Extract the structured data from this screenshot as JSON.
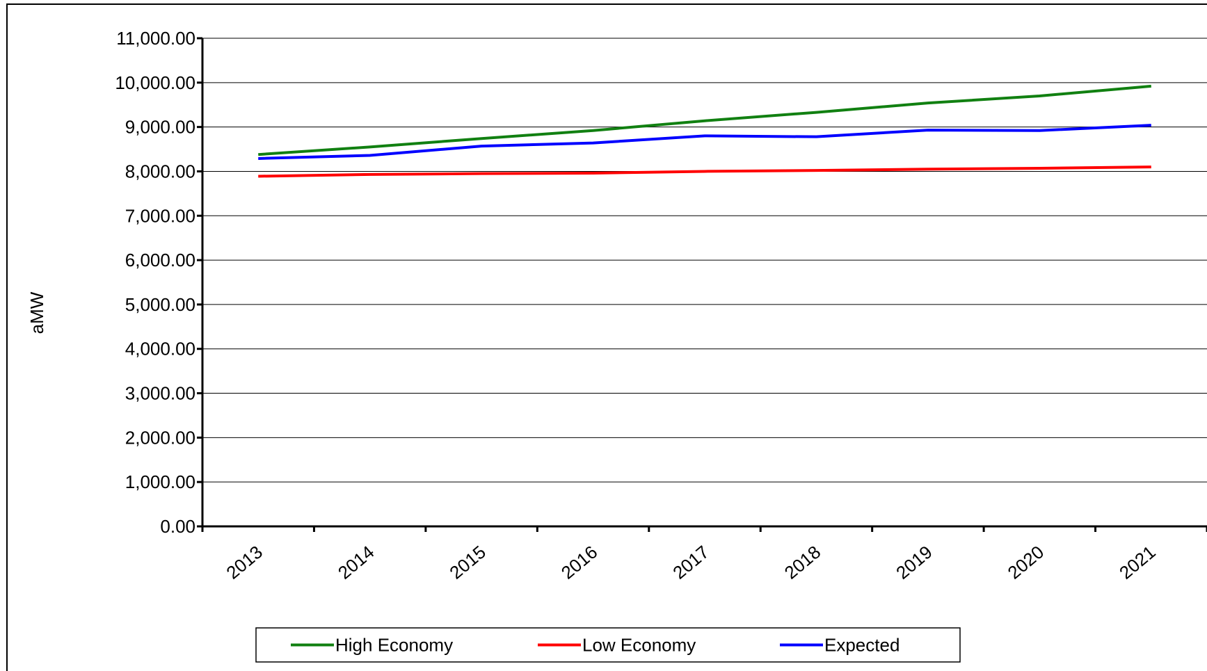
{
  "chart_data": {
    "type": "line",
    "y_label": "aMW",
    "categories": [
      "2013",
      "2014",
      "2015",
      "2016",
      "2017",
      "2018",
      "2019",
      "2020",
      "2021"
    ],
    "series": [
      {
        "name": "High Economy",
        "color": "#118011",
        "values": [
          8380,
          8550,
          8740,
          8920,
          9140,
          9330,
          9540,
          9700,
          9920
        ]
      },
      {
        "name": "Low Economy",
        "color": "#ff0000",
        "values": [
          7890,
          7930,
          7950,
          7960,
          8000,
          8020,
          8050,
          8070,
          8100
        ]
      },
      {
        "name": "Expected",
        "color": "#0000ff",
        "values": [
          8290,
          8360,
          8570,
          8640,
          8800,
          8780,
          8930,
          8920,
          9040
        ]
      }
    ],
    "ylim": [
      0,
      11000
    ],
    "yticks": [
      {
        "value": 0,
        "label": "0.00"
      },
      {
        "value": 1000,
        "label": "1,000.00"
      },
      {
        "value": 2000,
        "label": "2,000.00"
      },
      {
        "value": 3000,
        "label": "3,000.00"
      },
      {
        "value": 4000,
        "label": "4,000.00"
      },
      {
        "value": 5000,
        "label": "5,000.00"
      },
      {
        "value": 6000,
        "label": "6,000.00"
      },
      {
        "value": 7000,
        "label": "7,000.00"
      },
      {
        "value": 8000,
        "label": "8,000.00"
      },
      {
        "value": 9000,
        "label": "9,000.00"
      },
      {
        "value": 10000,
        "label": "10,000.00"
      },
      {
        "value": 11000,
        "label": "11,000.00"
      }
    ],
    "grid": true,
    "legend": "bottom"
  }
}
